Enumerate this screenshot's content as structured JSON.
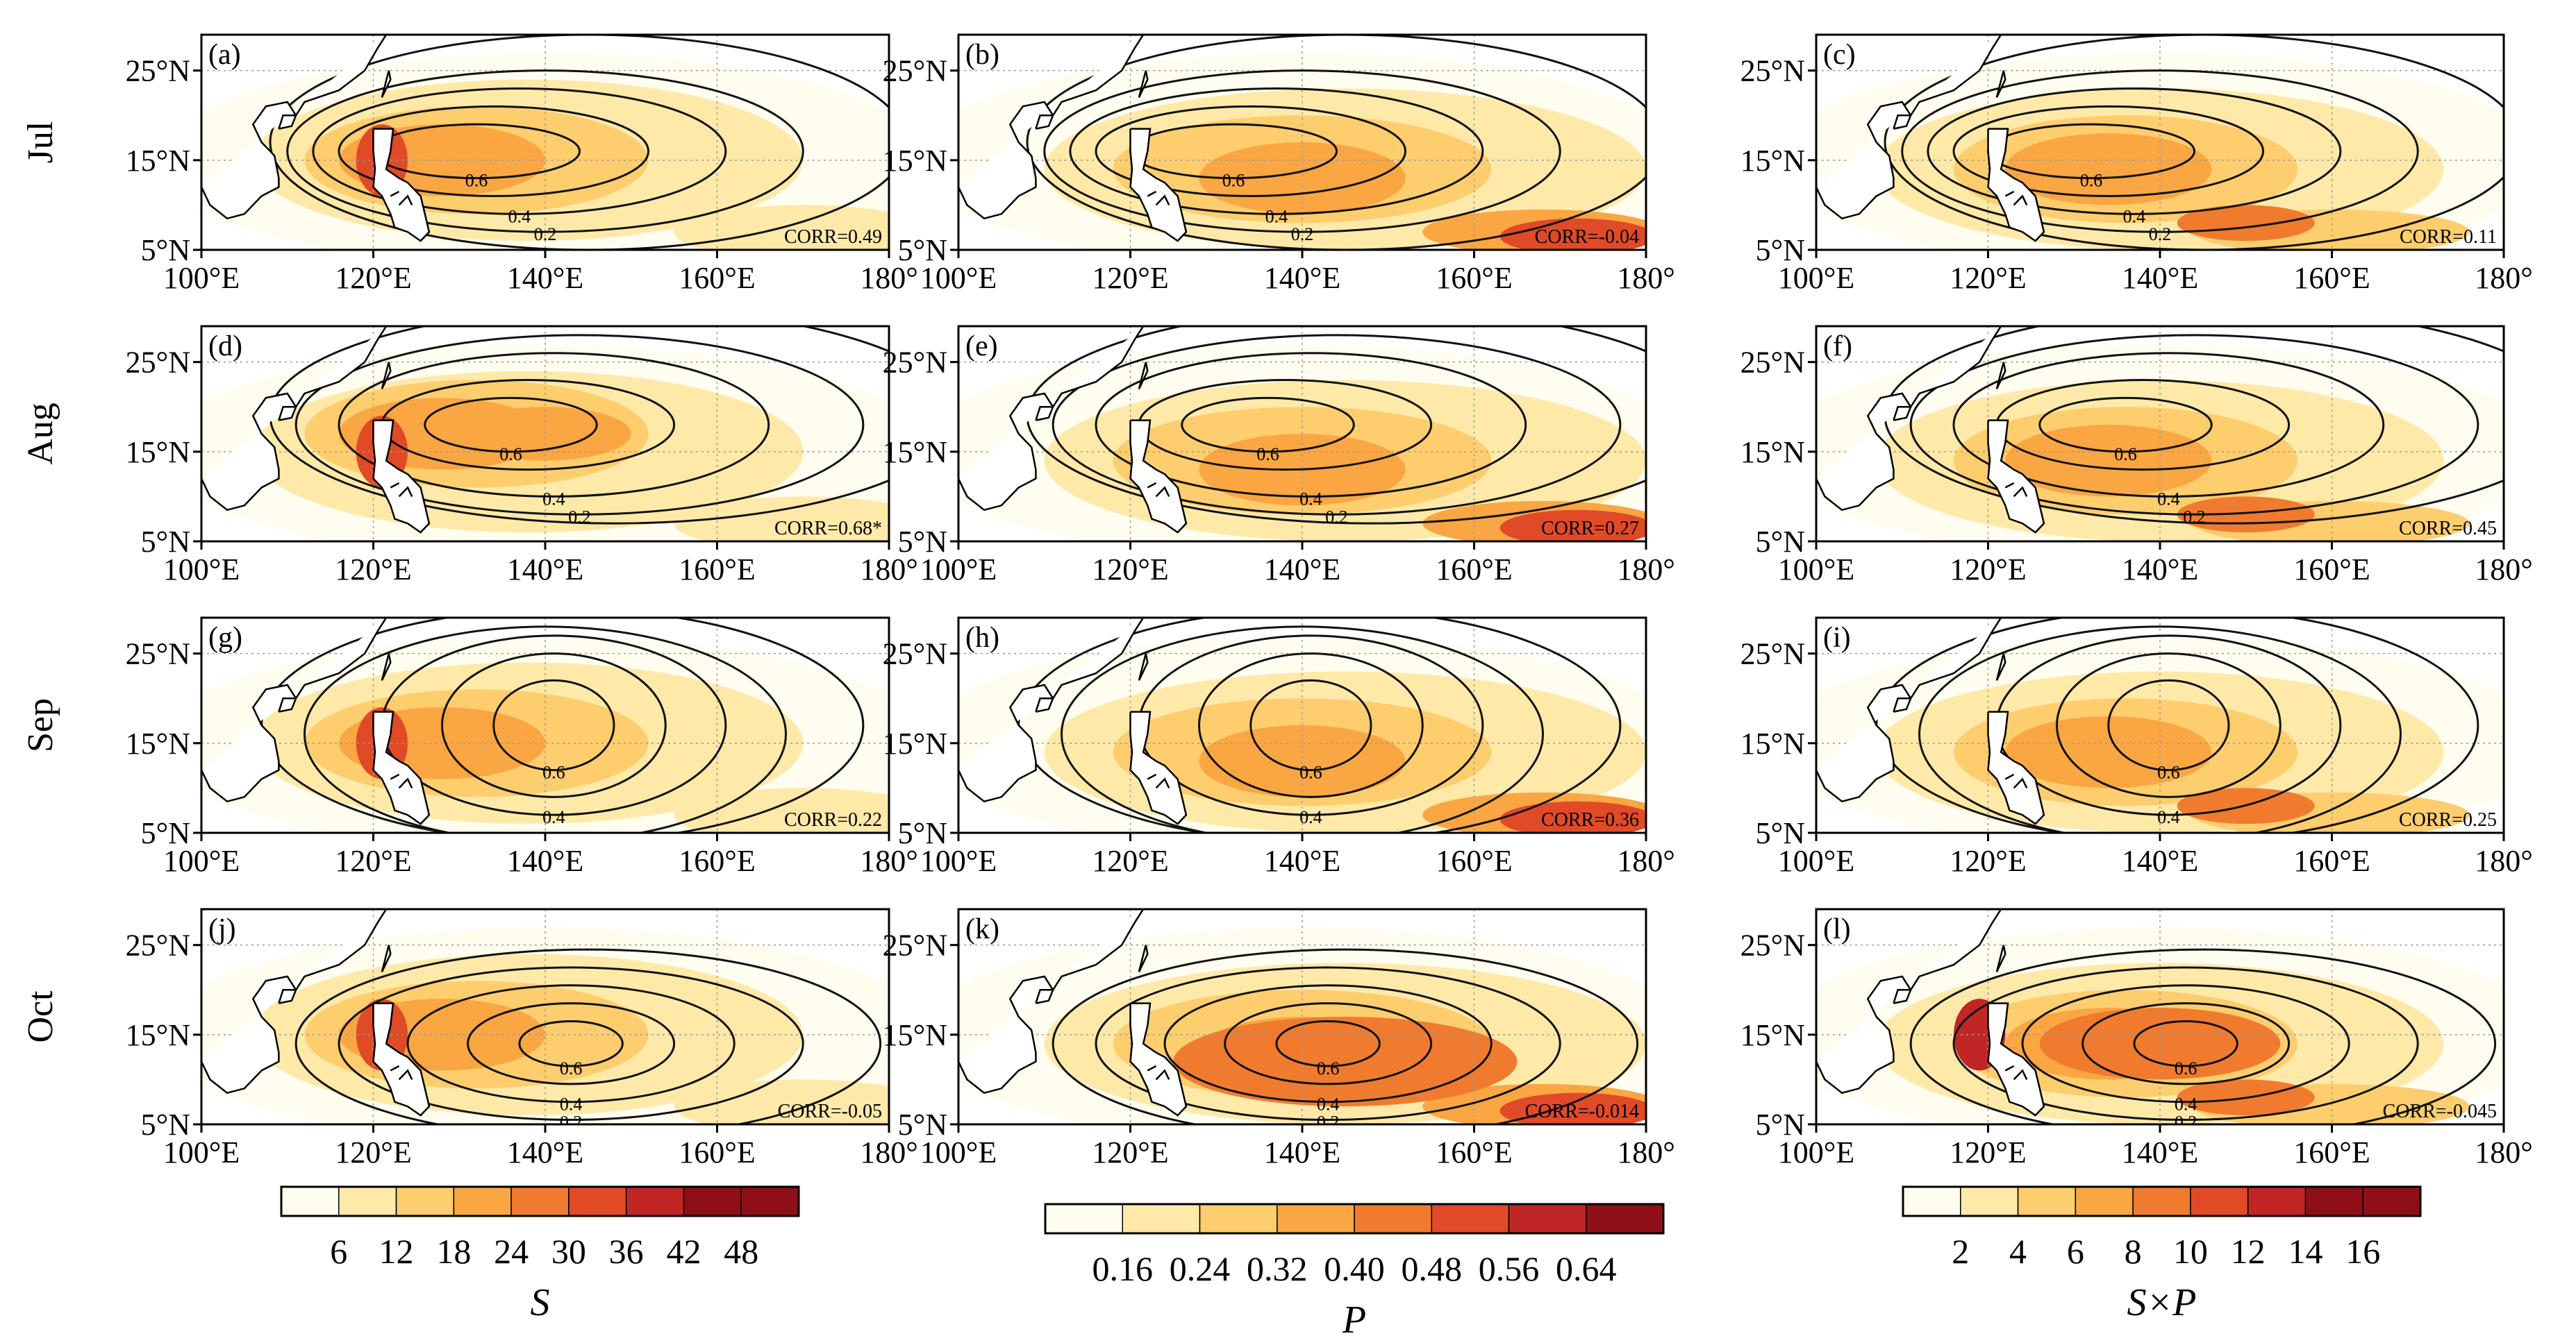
{
  "rows": [
    {
      "label": "Jul"
    },
    {
      "label": "Aug"
    },
    {
      "label": "Sep"
    },
    {
      "label": "Oct"
    }
  ],
  "panels": [
    {
      "tag": "(a)",
      "corr": "CORR=0.49"
    },
    {
      "tag": "(b)",
      "corr": "CORR=-0.04"
    },
    {
      "tag": "(c)",
      "corr": "CORR=0.11"
    },
    {
      "tag": "(d)",
      "corr": "CORR=0.68*"
    },
    {
      "tag": "(e)",
      "corr": "CORR=0.27"
    },
    {
      "tag": "(f)",
      "corr": "CORR=0.45"
    },
    {
      "tag": "(g)",
      "corr": "CORR=0.22"
    },
    {
      "tag": "(h)",
      "corr": "CORR=0.36"
    },
    {
      "tag": "(i)",
      "corr": "CORR=0.25"
    },
    {
      "tag": "(j)",
      "corr": "CORR=-0.05"
    },
    {
      "tag": "(k)",
      "corr": "CORR=-0.014"
    },
    {
      "tag": "(l)",
      "corr": "CORR=-0.045"
    }
  ],
  "axes": {
    "lat_ticks": [
      "5°N",
      "15°N",
      "25°N"
    ],
    "lon_ticks": [
      "100°E",
      "120°E",
      "140°E",
      "160°E",
      "180°"
    ],
    "lat_range": [
      5,
      29
    ],
    "lon_range": [
      100,
      180
    ]
  },
  "contour_labels": [
    "0.2",
    "0.4",
    "0.6"
  ],
  "colorbars": [
    {
      "title": "S",
      "ticks": [
        "6",
        "12",
        "18",
        "24",
        "30",
        "36",
        "42",
        "48"
      ]
    },
    {
      "title": "P",
      "ticks": [
        "0.16",
        "0.24",
        "0.32",
        "0.40",
        "0.48",
        "0.56",
        "0.64"
      ]
    },
    {
      "title": "S×P",
      "ticks": [
        "2",
        "4",
        "6",
        "8",
        "10",
        "12",
        "14",
        "16"
      ]
    }
  ],
  "colors": [
    "#fffdf0",
    "#fee9a8",
    "#fdcd6e",
    "#f9a643",
    "#f07b2f",
    "#e04a27",
    "#c12626",
    "#8e0f18"
  ]
}
